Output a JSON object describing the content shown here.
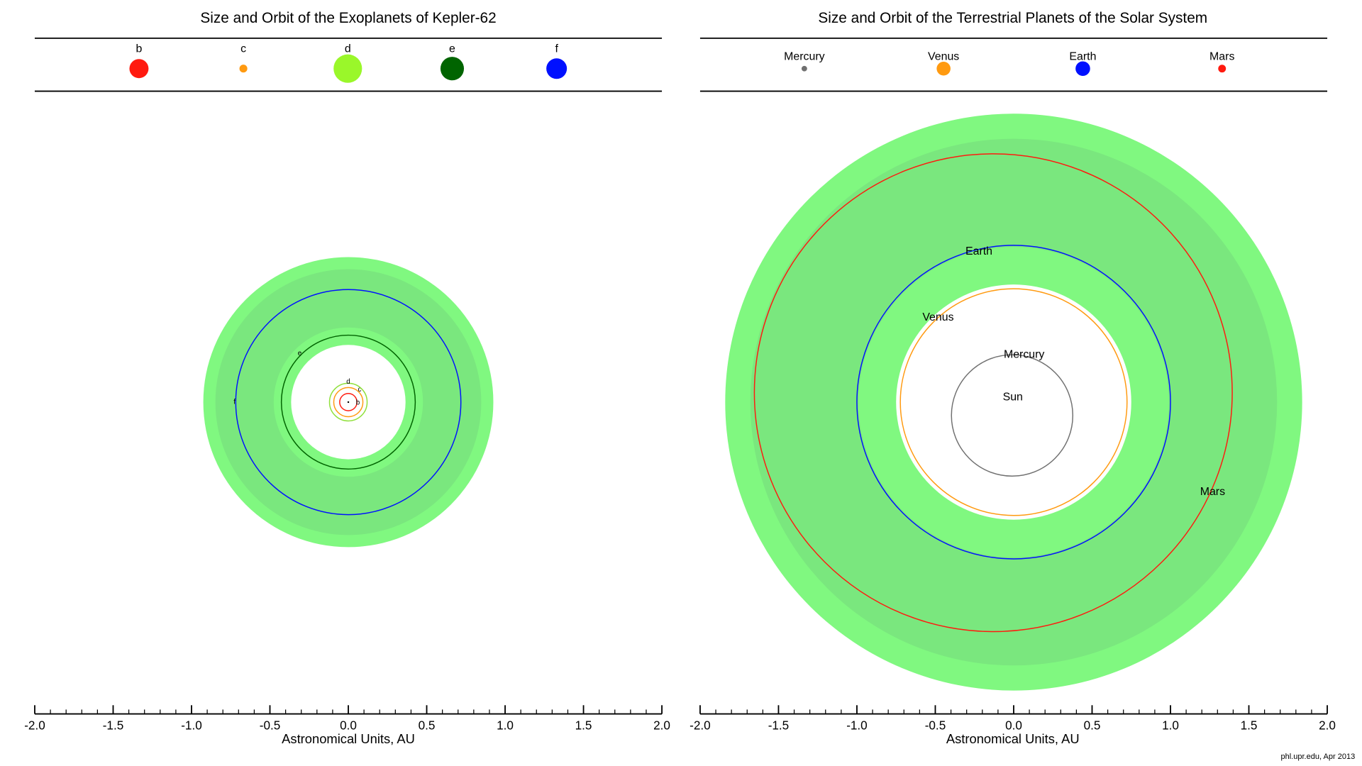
{
  "credit": "phl.upr.edu, Apr 2013",
  "colors": {
    "hz_optimistic": "#80f880",
    "hz_conservative": "#7ae77e"
  },
  "chart_data": [
    {
      "type": "orbit-diagram",
      "title": "Size and Orbit of the Exoplanets of Kepler-62",
      "xlabel": "Astronomical Units, AU",
      "xlim": [
        -2.0,
        2.0
      ],
      "ticks": [
        "-2.0",
        "-1.5",
        "-1.0",
        "-0.5",
        "0.0",
        "0.5",
        "1.0",
        "1.5",
        "2.0"
      ],
      "habitable_zone": {
        "optimistic_au": [
          0.365,
          0.925
        ],
        "conservative_au": [
          0.476,
          0.848
        ]
      },
      "legend_placement": "top",
      "planets": [
        {
          "name": "b",
          "orbit_au": 0.055,
          "color": "#ff1a0f",
          "relative_size": 1.31
        },
        {
          "name": "c",
          "orbit_au": 0.093,
          "color": "#ff9a10",
          "relative_size": 0.54
        },
        {
          "name": "d",
          "orbit_au": 0.12,
          "color": "#9af72a",
          "relative_size": 1.95
        },
        {
          "name": "e",
          "orbit_au": 0.427,
          "color": "#006400",
          "relative_size": 1.61
        },
        {
          "name": "f",
          "orbit_au": 0.718,
          "color": "#0010ff",
          "relative_size": 1.41
        }
      ]
    },
    {
      "type": "orbit-diagram",
      "title": "Size and Orbit of the Terrestrial Planets of the Solar System",
      "xlabel": "Astronomical Units, AU",
      "xlim": [
        -2.0,
        2.0
      ],
      "ticks": [
        "-2.0",
        "-1.5",
        "-1.0",
        "-0.5",
        "0.0",
        "0.5",
        "1.0",
        "1.5",
        "2.0"
      ],
      "habitable_zone": {
        "optimistic_au": [
          0.75,
          1.84
        ],
        "conservative_au": [
          0.99,
          1.68
        ]
      },
      "legend_placement": "top",
      "star_label": "Sun",
      "planets": [
        {
          "name": "Mercury",
          "orbit_au": 0.387,
          "eccentricity": 0.206,
          "color": "#707070",
          "relative_size": 0.38
        },
        {
          "name": "Venus",
          "orbit_au": 0.723,
          "eccentricity": 0.007,
          "color": "#ff9a10",
          "relative_size": 0.95
        },
        {
          "name": "Earth",
          "orbit_au": 1.0,
          "eccentricity": 0.017,
          "color": "#0010ff",
          "relative_size": 1.0
        },
        {
          "name": "Mars",
          "orbit_au": 1.524,
          "eccentricity": 0.093,
          "color": "#ff1a0f",
          "relative_size": 0.53
        }
      ]
    }
  ]
}
